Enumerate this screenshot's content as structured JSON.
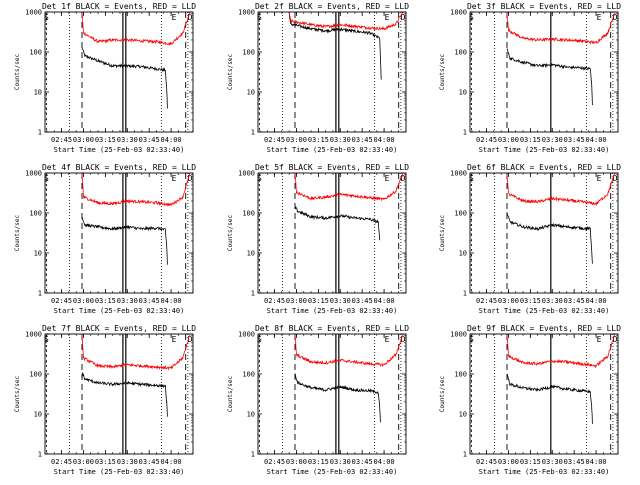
{
  "figure": {
    "colors": {
      "events": "#000000",
      "lld": "#ff0000",
      "axis": "#000000",
      "background": "#ffffff"
    }
  },
  "chart_data": [
    {
      "type": "line",
      "title": "Det 1f BLACK = Events, RED = LLD",
      "xlabel": "Start Time (25-Feb-03 02:33:40)",
      "ylabel": "Counts/sec",
      "xlim": [
        "02:33:40",
        "04:15:00"
      ],
      "ylim": [
        1,
        1000
      ],
      "yscale": "log",
      "x_ticks": [
        "02:45",
        "03:00",
        "03:15",
        "03:30",
        "03:45",
        "04:00"
      ],
      "y_ticks": [
        "1",
        "10",
        "100",
        "1000"
      ],
      "markers": {
        "S": "02:34:40",
        "E": "04:02:00",
        "D": "04:13:00"
      },
      "dotted_lines": [
        "02:50:30",
        "03:53:30",
        "04:11:30"
      ],
      "dashed_lines": [
        "02:59:00",
        "04:10:00"
      ],
      "solid_lines": [
        "03:27:00",
        "03:29:00"
      ],
      "series": [
        {
          "name": "Events",
          "x": [
            "02:59",
            "03:01",
            "03:10",
            "03:20",
            "03:30",
            "03:40",
            "03:50",
            "03:56",
            "03:57",
            "03:57:30"
          ],
          "values": [
            130,
            80,
            60,
            45,
            45,
            43,
            38,
            35,
            12,
            4
          ]
        },
        {
          "name": "LLD",
          "x": [
            "02:59",
            "03:00",
            "03:10",
            "03:20",
            "03:30",
            "03:40",
            "03:50",
            "04:00",
            "04:08",
            "04:13"
          ],
          "values": [
            1000,
            300,
            180,
            200,
            200,
            190,
            180,
            160,
            300,
            1000
          ]
        }
      ]
    },
    {
      "type": "line",
      "title": "Det 2f BLACK = Events, RED = LLD",
      "xlabel": "Start Time (25-Feb-03 02:33:40)",
      "ylabel": "Counts/sec",
      "xlim": [
        "02:33:40",
        "04:15:00"
      ],
      "ylim": [
        1,
        1000
      ],
      "yscale": "log",
      "x_ticks": [
        "02:45",
        "03:00",
        "03:15",
        "03:30",
        "03:45",
        "04:00"
      ],
      "y_ticks": [
        "1",
        "10",
        "100",
        "1000"
      ],
      "markers": {
        "S": "02:34:40",
        "E": "04:02:00",
        "D": "04:13:00"
      },
      "dotted_lines": [
        "02:50:30",
        "03:53:30",
        "04:11:30"
      ],
      "dashed_lines": [
        "02:59:00",
        "04:10:00"
      ],
      "solid_lines": [
        "03:27:00",
        "03:29:00"
      ],
      "series": [
        {
          "name": "Events",
          "x": [
            "02:55",
            "02:56",
            "03:10",
            "03:20",
            "03:30",
            "03:40",
            "03:50",
            "03:57",
            "03:58"
          ],
          "values": [
            1000,
            500,
            380,
            340,
            370,
            330,
            300,
            220,
            20
          ]
        },
        {
          "name": "LLD",
          "x": [
            "02:55",
            "02:56",
            "03:10",
            "03:20",
            "03:30",
            "03:40",
            "03:50",
            "04:00",
            "04:08",
            "04:13"
          ],
          "values": [
            1000,
            600,
            480,
            430,
            480,
            440,
            400,
            380,
            500,
            1000
          ]
        }
      ]
    },
    {
      "type": "line",
      "title": "Det 3f BLACK = Events, RED = LLD",
      "xlabel": "Start Time (25-Feb-03 02:33:40)",
      "ylabel": "Counts/sec",
      "xlim": [
        "02:33:40",
        "04:15:00"
      ],
      "ylim": [
        1,
        1000
      ],
      "yscale": "log",
      "x_ticks": [
        "02:45",
        "03:00",
        "03:15",
        "03:30",
        "03:45",
        "04:00"
      ],
      "y_ticks": [
        "1",
        "10",
        "100",
        "1000"
      ],
      "markers": {
        "S": "02:34:40",
        "E": "04:02:00",
        "D": "04:13:00"
      },
      "dotted_lines": [
        "02:50:30",
        "03:53:30",
        "04:11:30"
      ],
      "dashed_lines": [
        "02:59:00",
        "04:10:00"
      ],
      "solid_lines": [
        "03:29:00"
      ],
      "series": [
        {
          "name": "Events",
          "x": [
            "02:59",
            "03:01",
            "03:10",
            "03:20",
            "03:30",
            "03:40",
            "03:50",
            "03:56",
            "03:57",
            "03:57:30"
          ],
          "values": [
            120,
            70,
            55,
            45,
            48,
            42,
            40,
            38,
            15,
            5
          ]
        },
        {
          "name": "LLD",
          "x": [
            "02:59",
            "03:00",
            "03:10",
            "03:20",
            "03:30",
            "03:40",
            "03:50",
            "04:00",
            "04:08",
            "04:13"
          ],
          "values": [
            1000,
            350,
            220,
            200,
            210,
            200,
            190,
            170,
            300,
            1000
          ]
        }
      ]
    },
    {
      "type": "line",
      "title": "Det 4f BLACK = Events, RED = LLD",
      "xlabel": "Start Time (25-Feb-03 02:33:40)",
      "ylabel": "Counts/sec",
      "xlim": [
        "02:33:40",
        "04:15:00"
      ],
      "ylim": [
        1,
        1000
      ],
      "yscale": "log",
      "x_ticks": [
        "02:45",
        "03:00",
        "03:15",
        "03:30",
        "03:45",
        "04:00"
      ],
      "y_ticks": [
        "1",
        "10",
        "100",
        "1000"
      ],
      "markers": {
        "S": "02:34:40",
        "E": "04:02:00",
        "D": "04:13:00"
      },
      "dotted_lines": [
        "02:50:30",
        "03:53:30",
        "04:11:30"
      ],
      "dashed_lines": [
        "02:59:00",
        "04:10:00"
      ],
      "solid_lines": [
        "03:27:00",
        "03:29:00"
      ],
      "series": [
        {
          "name": "Events",
          "x": [
            "02:59",
            "03:01",
            "03:10",
            "03:20",
            "03:30",
            "03:40",
            "03:50",
            "03:56",
            "03:57",
            "03:57:30"
          ],
          "values": [
            80,
            50,
            45,
            40,
            45,
            40,
            42,
            38,
            15,
            5
          ]
        },
        {
          "name": "LLD",
          "x": [
            "02:59",
            "03:00",
            "03:10",
            "03:20",
            "03:30",
            "03:40",
            "03:50",
            "04:00",
            "04:08",
            "04:13"
          ],
          "values": [
            1000,
            250,
            180,
            170,
            200,
            190,
            180,
            160,
            250,
            1000
          ]
        }
      ]
    },
    {
      "type": "line",
      "title": "Det 5f BLACK = Events, RED = LLD",
      "xlabel": "Start Time (25-Feb-03 02:33:40)",
      "ylabel": "Counts/sec",
      "xlim": [
        "02:33:40",
        "04:15:00"
      ],
      "ylim": [
        1,
        1000
      ],
      "yscale": "log",
      "x_ticks": [
        "02:45",
        "03:00",
        "03:15",
        "03:30",
        "03:45",
        "04:00"
      ],
      "y_ticks": [
        "1",
        "10",
        "100",
        "1000"
      ],
      "markers": {
        "S": "02:34:40",
        "E": "04:02:00",
        "D": "04:13:00"
      },
      "dotted_lines": [
        "02:50:30",
        "03:53:30",
        "04:11:30"
      ],
      "dashed_lines": [
        "02:59:00",
        "04:10:00"
      ],
      "solid_lines": [
        "03:27:00",
        "03:29:00"
      ],
      "series": [
        {
          "name": "Events",
          "x": [
            "02:59",
            "03:01",
            "03:10",
            "03:20",
            "03:30",
            "03:40",
            "03:50",
            "03:56",
            "03:57"
          ],
          "values": [
            140,
            110,
            80,
            75,
            85,
            75,
            70,
            60,
            20
          ]
        },
        {
          "name": "LLD",
          "x": [
            "02:59",
            "03:00",
            "03:10",
            "03:20",
            "03:30",
            "03:40",
            "03:50",
            "04:00",
            "04:08",
            "04:13"
          ],
          "values": [
            1000,
            330,
            230,
            250,
            290,
            270,
            240,
            220,
            350,
            1000
          ]
        }
      ]
    },
    {
      "type": "line",
      "title": "Det 6f BLACK = Events, RED = LLD",
      "xlabel": "Start Time (25-Feb-03 02:33:40)",
      "ylabel": "Counts/sec",
      "xlim": [
        "02:33:40",
        "04:15:00"
      ],
      "ylim": [
        1,
        1000
      ],
      "yscale": "log",
      "x_ticks": [
        "02:45",
        "03:00",
        "03:15",
        "03:30",
        "03:45",
        "04:00"
      ],
      "y_ticks": [
        "1",
        "10",
        "100",
        "1000"
      ],
      "markers": {
        "S": "02:34:40",
        "E": "04:02:00",
        "D": "04:13:00"
      },
      "dotted_lines": [
        "02:50:30",
        "03:53:30",
        "04:11:30"
      ],
      "dashed_lines": [
        "02:59:00",
        "04:10:00"
      ],
      "solid_lines": [
        "03:29:00"
      ],
      "series": [
        {
          "name": "Events",
          "x": [
            "02:59",
            "03:01",
            "03:10",
            "03:20",
            "03:30",
            "03:40",
            "03:50",
            "03:56",
            "03:57",
            "03:57:30"
          ],
          "values": [
            100,
            60,
            45,
            40,
            50,
            45,
            42,
            40,
            12,
            5
          ]
        },
        {
          "name": "LLD",
          "x": [
            "02:59",
            "03:00",
            "03:10",
            "03:20",
            "03:30",
            "03:40",
            "03:50",
            "04:00",
            "04:08",
            "04:13"
          ],
          "values": [
            1000,
            300,
            200,
            190,
            230,
            210,
            190,
            170,
            300,
            1000
          ]
        }
      ]
    },
    {
      "type": "line",
      "title": "Det 7f BLACK = Events, RED = LLD",
      "xlabel": "Start Time (25-Feb-03 02:33:40)",
      "ylabel": "Counts/sec",
      "xlim": [
        "02:33:40",
        "04:15:00"
      ],
      "ylim": [
        1,
        1000
      ],
      "yscale": "log",
      "x_ticks": [
        "02:45",
        "03:00",
        "03:15",
        "03:30",
        "03:45",
        "04:00"
      ],
      "y_ticks": [
        "1",
        "10",
        "100",
        "1000"
      ],
      "markers": {
        "S": "02:34:40",
        "E": "04:02:00",
        "D": "04:13:00"
      },
      "dotted_lines": [
        "02:50:30",
        "03:53:30",
        "04:11:30"
      ],
      "dashed_lines": [
        "02:59:00",
        "04:10:00"
      ],
      "solid_lines": [
        "03:27:00",
        "03:29:00"
      ],
      "series": [
        {
          "name": "Events",
          "x": [
            "02:59",
            "03:01",
            "03:10",
            "03:20",
            "03:30",
            "03:40",
            "03:50",
            "03:56",
            "03:57",
            "03:57:30"
          ],
          "values": [
            110,
            75,
            60,
            55,
            60,
            55,
            52,
            50,
            20,
            8
          ]
        },
        {
          "name": "LLD",
          "x": [
            "02:59",
            "03:00",
            "03:10",
            "03:20",
            "03:30",
            "03:40",
            "03:50",
            "04:00",
            "04:08",
            "04:13"
          ],
          "values": [
            1000,
            250,
            160,
            150,
            170,
            160,
            150,
            140,
            250,
            1000
          ]
        }
      ]
    },
    {
      "type": "line",
      "title": "Det 8f BLACK = Events, RED = LLD",
      "xlabel": "Start Time (25-Feb-03 02:33:40)",
      "ylabel": "Counts/sec",
      "xlim": [
        "02:33:40",
        "04:15:00"
      ],
      "ylim": [
        1,
        1000
      ],
      "yscale": "log",
      "x_ticks": [
        "02:45",
        "03:00",
        "03:15",
        "03:30",
        "03:45",
        "04:00"
      ],
      "y_ticks": [
        "1",
        "10",
        "100",
        "1000"
      ],
      "markers": {
        "S": "02:34:40",
        "E": "04:02:00",
        "D": "04:13:00"
      },
      "dotted_lines": [
        "02:50:30",
        "03:53:30",
        "04:11:30"
      ],
      "dashed_lines": [
        "02:59:00",
        "04:10:00"
      ],
      "solid_lines": [
        "03:27:00",
        "03:29:00"
      ],
      "series": [
        {
          "name": "Events",
          "x": [
            "02:59",
            "03:01",
            "03:10",
            "03:20",
            "03:30",
            "03:40",
            "03:50",
            "03:56",
            "03:57",
            "03:57:30"
          ],
          "values": [
            100,
            60,
            45,
            40,
            48,
            40,
            38,
            35,
            15,
            6
          ]
        },
        {
          "name": "LLD",
          "x": [
            "02:59",
            "03:00",
            "03:10",
            "03:20",
            "03:30",
            "03:40",
            "03:50",
            "04:00",
            "04:08",
            "04:13"
          ],
          "values": [
            1000,
            300,
            200,
            190,
            220,
            200,
            180,
            170,
            300,
            1000
          ]
        }
      ]
    },
    {
      "type": "line",
      "title": "Det 9f BLACK = Events, RED = LLD",
      "xlabel": "Start Time (25-Feb-03 02:33:40)",
      "ylabel": "Counts/sec",
      "xlim": [
        "02:33:40",
        "04:15:00"
      ],
      "ylim": [
        1,
        1000
      ],
      "yscale": "log",
      "x_ticks": [
        "02:45",
        "03:00",
        "03:15",
        "03:30",
        "03:45",
        "04:00"
      ],
      "y_ticks": [
        "1",
        "10",
        "100",
        "1000"
      ],
      "markers": {
        "S": "02:34:40",
        "E": "04:02:00",
        "D": "04:13:00"
      },
      "dotted_lines": [
        "02:50:30",
        "03:53:30",
        "04:11:30"
      ],
      "dashed_lines": [
        "02:59:00",
        "04:10:00"
      ],
      "solid_lines": [
        "03:29:00"
      ],
      "series": [
        {
          "name": "Events",
          "x": [
            "02:59",
            "03:01",
            "03:10",
            "03:20",
            "03:30",
            "03:40",
            "03:50",
            "03:56",
            "03:57",
            "03:57:30"
          ],
          "values": [
            100,
            55,
            45,
            40,
            48,
            42,
            38,
            36,
            15,
            6
          ]
        },
        {
          "name": "LLD",
          "x": [
            "02:59",
            "03:00",
            "03:10",
            "03:20",
            "03:30",
            "03:40",
            "03:50",
            "04:00",
            "04:08",
            "04:13"
          ],
          "values": [
            1000,
            280,
            190,
            180,
            210,
            200,
            180,
            160,
            280,
            1000
          ]
        }
      ]
    }
  ]
}
